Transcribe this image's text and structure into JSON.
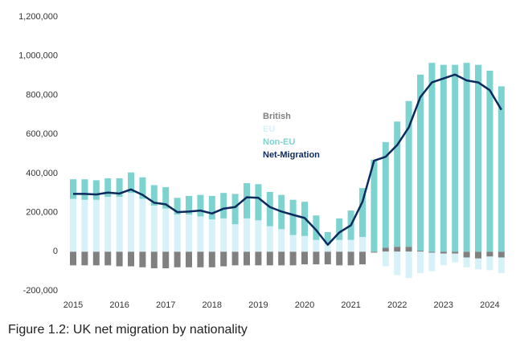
{
  "chart_data": {
    "type": "bar",
    "stacked": true,
    "caption": "Figure 1.2: UK net migration by nationality",
    "categories": [
      "2015",
      null,
      null,
      null,
      "2016",
      null,
      null,
      null,
      "2017",
      null,
      null,
      null,
      "2018",
      null,
      null,
      null,
      "2019",
      null,
      null,
      null,
      "2020",
      null,
      null,
      null,
      "2021",
      null,
      null,
      null,
      "2022",
      null,
      null,
      null,
      "2023",
      null,
      null,
      null,
      "2024",
      null
    ],
    "series": [
      {
        "name": "British",
        "color": "#808080",
        "values": [
          -70000,
          -70000,
          -70000,
          -70000,
          -75000,
          -75000,
          -80000,
          -85000,
          -85000,
          -80000,
          -80000,
          -80000,
          -80000,
          -75000,
          -70000,
          -70000,
          -70000,
          -70000,
          -70000,
          -70000,
          -65000,
          -65000,
          -65000,
          -70000,
          -70000,
          -65000,
          -5000,
          20000,
          25000,
          25000,
          5000,
          -5000,
          -10000,
          -10000,
          -30000,
          -35000,
          -25000,
          -30000
        ]
      },
      {
        "name": "EU",
        "color": "#d6f2f8",
        "values": [
          270000,
          265000,
          265000,
          280000,
          280000,
          300000,
          270000,
          235000,
          220000,
          190000,
          190000,
          180000,
          165000,
          170000,
          140000,
          170000,
          160000,
          130000,
          115000,
          85000,
          80000,
          60000,
          40000,
          60000,
          60000,
          75000,
          0,
          -75000,
          -120000,
          -135000,
          -110000,
          -95000,
          -60000,
          -45000,
          -50000,
          -55000,
          -70000,
          -80000
        ]
      },
      {
        "name": "Non-EU",
        "color": "#7dd3cf",
        "values": [
          100000,
          105000,
          100000,
          95000,
          95000,
          105000,
          110000,
          105000,
          110000,
          85000,
          95000,
          110000,
          120000,
          130000,
          155000,
          180000,
          185000,
          175000,
          175000,
          180000,
          175000,
          125000,
          60000,
          110000,
          150000,
          250000,
          470000,
          540000,
          640000,
          745000,
          900000,
          965000,
          955000,
          955000,
          965000,
          955000,
          925000,
          845000
        ]
      },
      {
        "name": "Net-Migration",
        "type": "line",
        "color": "#0b2a5e",
        "values": [
          295000,
          295000,
          292000,
          302000,
          297000,
          318000,
          290000,
          250000,
          242000,
          202000,
          205000,
          210000,
          195000,
          220000,
          228000,
          278000,
          275000,
          228000,
          205000,
          188000,
          172000,
          110000,
          35000,
          98000,
          135000,
          255000,
          465000,
          485000,
          545000,
          635000,
          790000,
          865000,
          885000,
          905000,
          875000,
          865000,
          825000,
          725000
        ]
      }
    ],
    "ylim": [
      -200000,
      1200000
    ],
    "yticks": [
      {
        "value": -200000,
        "label": "-200,000"
      },
      0,
      {
        "value": 200000,
        "label": "200,000"
      },
      {
        "value": 400000,
        "label": "400,000"
      },
      {
        "value": 600000,
        "label": "600,000"
      },
      {
        "value": 800000,
        "label": "800,000"
      },
      {
        "value": 1000000,
        "label": "1,000,000"
      },
      {
        "value": 1200000,
        "label": "1,200,000"
      }
    ]
  }
}
